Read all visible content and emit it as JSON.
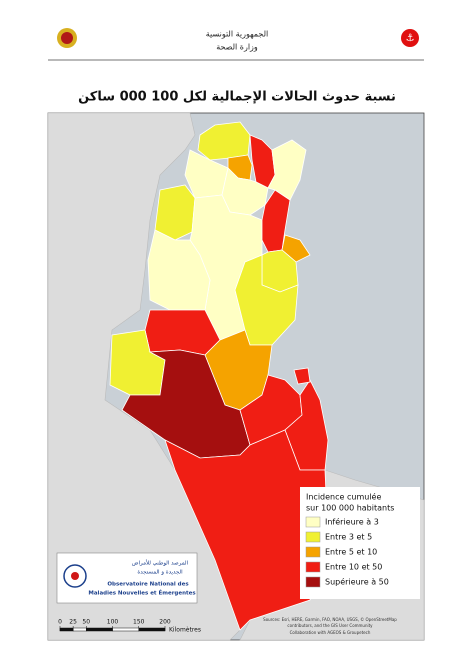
{
  "header": {
    "country": "الجمهورية التونسية",
    "ministry": "وزارة الصحة"
  },
  "title": "نسبة حدوث الحالات الإجمالية لكل 100 000 ساكن",
  "legend": {
    "title_lines": [
      "Incidence cumulée",
      "sur 100 000 habitants"
    ],
    "items": [
      {
        "label": "Inférieure à 3",
        "color": "#ffffc4"
      },
      {
        "label": "Entre 3 et 5",
        "color": "#f0f032"
      },
      {
        "label": "Entre 5 et 10",
        "color": "#f5a300"
      },
      {
        "label": "Entre 10 et 50",
        "color": "#f01e14"
      },
      {
        "label": "Supérieure à 50",
        "color": "#a50f0f"
      }
    ]
  },
  "logo": {
    "arabic_lines": [
      "المرصد الوطني للأمراض",
      "الجديدة و المستجدة"
    ],
    "french_lines": [
      "Observatoire National des",
      "Maladies Nouvelles et Émergentes"
    ]
  },
  "scale": {
    "ticks": [
      0,
      25,
      50,
      100,
      150,
      200
    ],
    "unit": "Kilomètres"
  },
  "attribution": [
    "Sources: Esri, HERE, Garmin, FAO, NOAA, USGS, © OpenStreetMap",
    "contributors, and the GIS User Community",
    "Collaboration with AGEOS & Groupetech"
  ]
}
